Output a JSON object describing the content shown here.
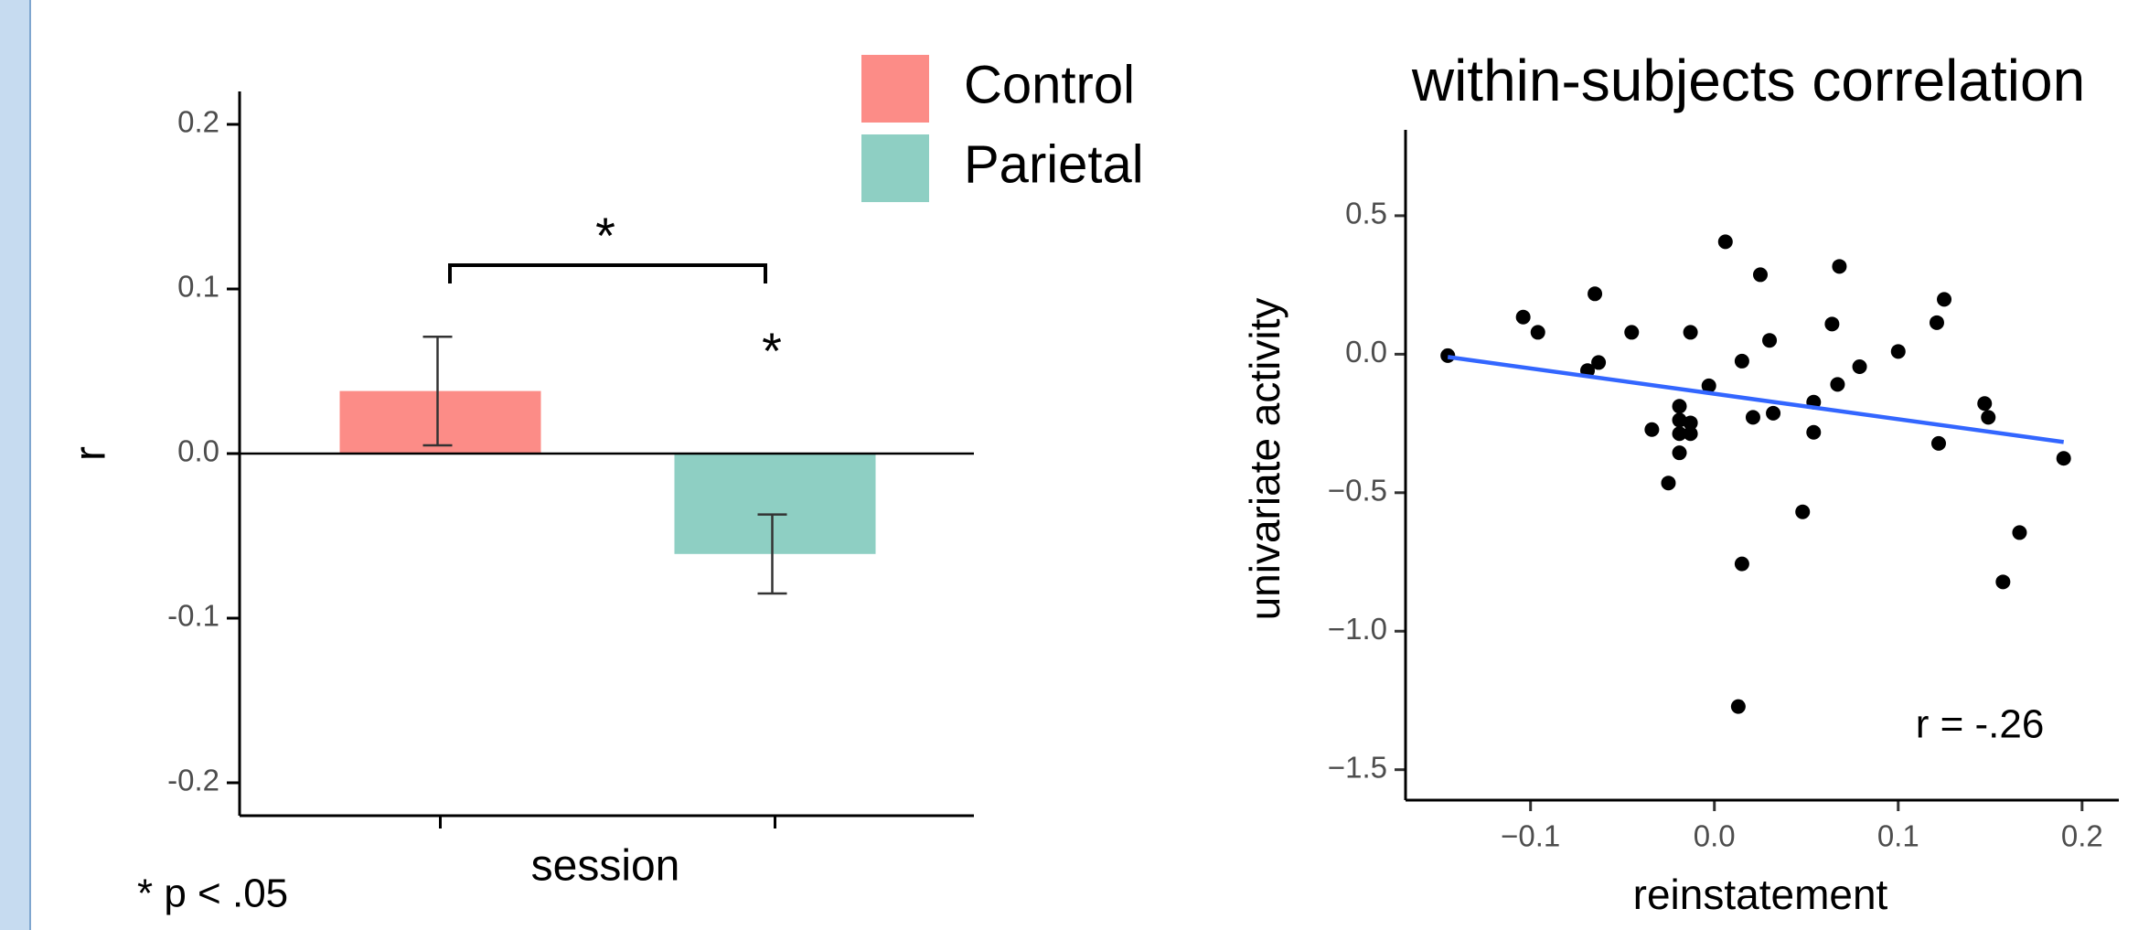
{
  "chart_data": [
    {
      "type": "bar",
      "y_label": "r",
      "x_label": "session",
      "categories": [
        null,
        null
      ],
      "series": [
        {
          "name": "Control",
          "color": "#fc8c87",
          "values": [
            0.038,
            null
          ],
          "errors": [
            0.033,
            null
          ]
        },
        {
          "name": "Parietal",
          "color": "#8ecfc3",
          "values": [
            null,
            -0.061
          ],
          "errors": [
            null,
            0.024
          ]
        }
      ],
      "ylim": [
        -0.22,
        0.22
      ],
      "yticks": [
        -0.2,
        -0.1,
        {
          "value": 0,
          "label": "0.0"
        },
        0.1,
        0.2
      ],
      "annotations": [
        "*",
        "*",
        "* p < .05"
      ]
    },
    {
      "type": "scatter",
      "title": "within-subjects correlation",
      "x_label": "reinstatement",
      "y_label": "univariate activity",
      "color": "#000000",
      "x": [
        -0.145,
        -0.104,
        -0.096,
        -0.065,
        -0.069,
        -0.063,
        -0.045,
        -0.034,
        -0.025,
        -0.019,
        -0.019,
        -0.019,
        -0.019,
        -0.013,
        -0.013,
        -0.013,
        -0.003,
        0.006,
        0.015,
        0.015,
        0.013,
        0.021,
        0.025,
        0.03,
        0.032,
        0.048,
        0.054,
        0.054,
        0.064,
        0.067,
        0.068,
        0.079,
        0.1,
        0.121,
        0.122,
        0.125,
        0.147,
        0.149,
        0.157,
        0.166,
        0.19
      ],
      "y": [
        -0.005,
        0.134,
        0.079,
        0.218,
        -0.059,
        -0.03,
        0.079,
        -0.272,
        -0.465,
        -0.188,
        -0.238,
        -0.287,
        -0.356,
        0.079,
        -0.248,
        -0.287,
        -0.114,
        0.406,
        -0.025,
        -0.757,
        -1.272,
        -0.228,
        0.287,
        0.05,
        -0.213,
        -0.569,
        -0.173,
        -0.282,
        0.109,
        -0.109,
        0.317,
        -0.045,
        0.01,
        0.114,
        -0.322,
        0.198,
        -0.178,
        -0.228,
        -0.822,
        -0.644,
        -0.376
      ],
      "fit": {
        "color": "#3366ff",
        "x": [
          -0.145,
          0.19
        ],
        "y": [
          -0.01,
          -0.317
        ]
      },
      "xlim": [
        -0.168,
        0.22
      ],
      "ylim": [
        -1.61,
        0.81
      ],
      "xticks": [
        {
          "value": -0.1,
          "label": "−0.1"
        },
        {
          "value": 0,
          "label": "0.0"
        },
        0.1,
        0.2
      ],
      "yticks": [
        {
          "value": -1.5,
          "label": "−1.5"
        },
        {
          "value": -1,
          "label": "−1.0"
        },
        {
          "value": -0.5,
          "label": "−0.5"
        },
        {
          "value": 0,
          "label": "0.0"
        },
        0.5
      ],
      "annotation": "r = -.26"
    }
  ]
}
